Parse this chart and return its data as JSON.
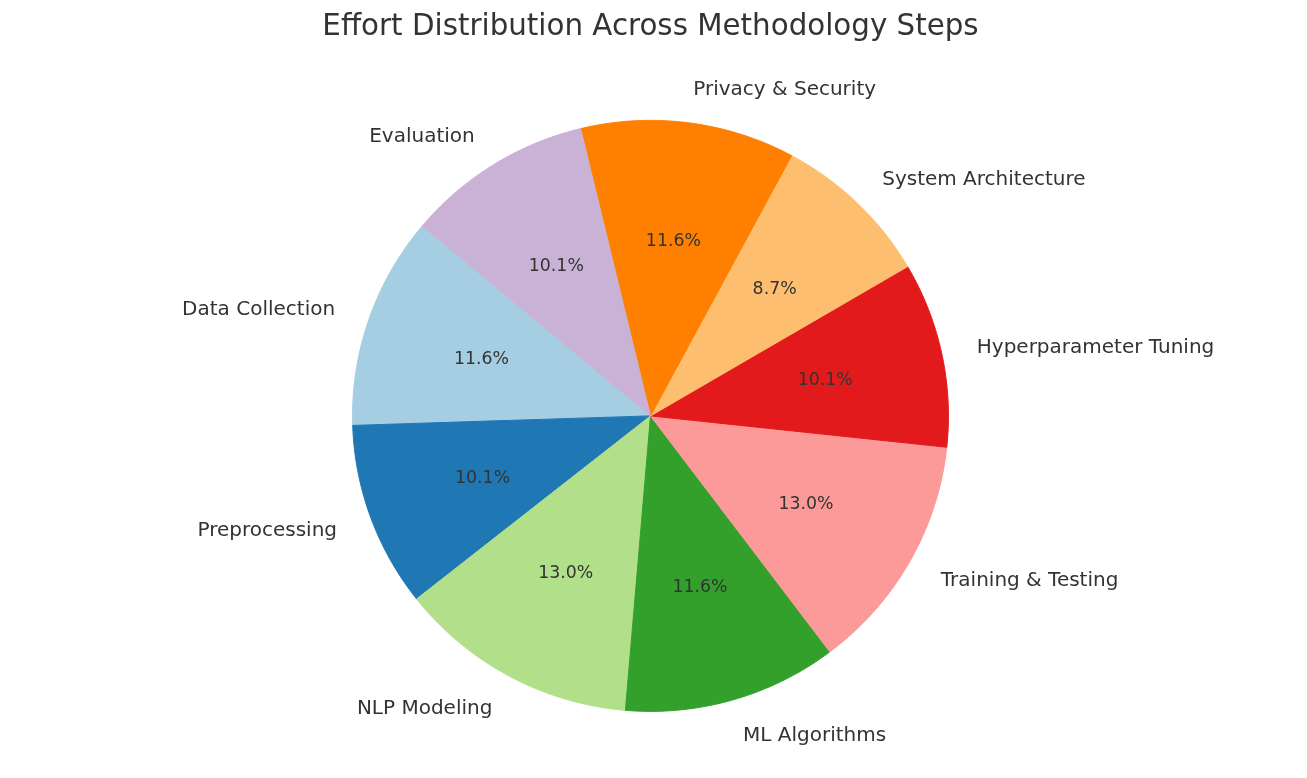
{
  "chart_data": {
    "type": "pie",
    "title": "Effort Distribution Across Methodology Steps",
    "categories": [
      "Data Collection",
      "Preprocessing",
      "NLP Modeling",
      "ML Algorithms",
      "Training & Testing",
      "Hyperparameter Tuning",
      "System Architecture",
      "Privacy & Security",
      "Evaluation"
    ],
    "values": [
      11.6,
      10.1,
      13.0,
      11.6,
      13.0,
      10.1,
      8.7,
      11.6,
      10.1
    ],
    "colors": [
      "#a6cee3",
      "#1f78b4",
      "#b2df8a",
      "#33a02c",
      "#fb9a99",
      "#e31a1c",
      "#fdbf6f",
      "#ff7f00",
      "#cab2d6"
    ],
    "value_labels": [
      "11.6%",
      "10.1%",
      "13.0%",
      "11.6%",
      "13.0%",
      "10.1%",
      "8.7%",
      "11.6%",
      "10.1%"
    ]
  }
}
